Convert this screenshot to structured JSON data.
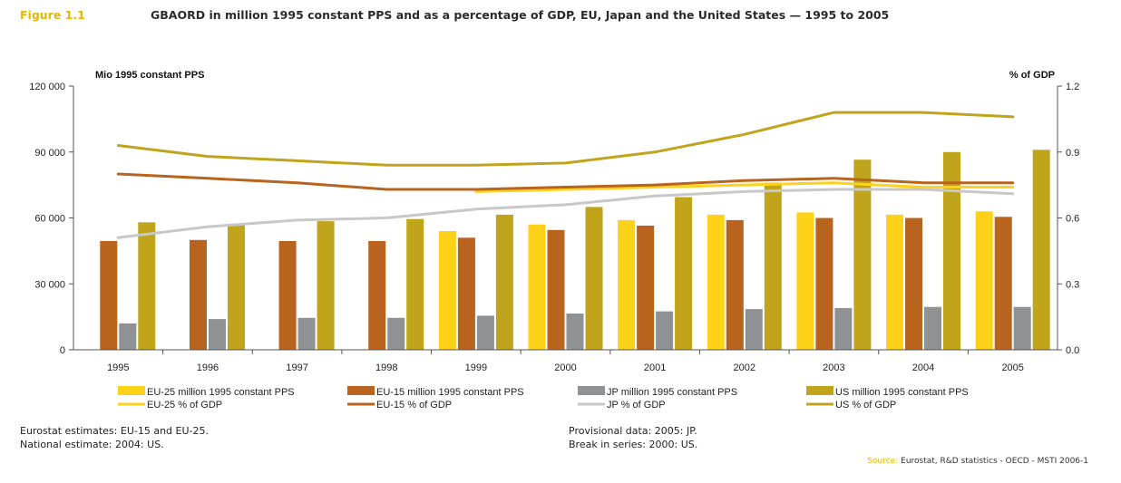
{
  "figure": {
    "label": "Figure 1.1",
    "title": "GBAORD in million 1995 constant PPS and as a percentage of GDP, EU, Japan and the United States — 1995 to 2005"
  },
  "colors": {
    "eu25": "#ffd21a",
    "eu15": "#b8641f",
    "jp_bar": "#8f9295",
    "jp_line": "#c8c8c8",
    "us": "#bfa41c",
    "axis": "#555555",
    "background": "#ffffff"
  },
  "chart_data": {
    "type": "bar",
    "categories": [
      "1995",
      "1996",
      "1997",
      "1998",
      "1999",
      "2000",
      "2001",
      "2002",
      "2003",
      "2004",
      "2005"
    ],
    "ylabel_left": "Mio 1995 constant PPS",
    "ylabel_right": "% of GDP",
    "ylim_left": [
      0,
      120000
    ],
    "ylim_right": [
      0.0,
      1.2
    ],
    "yticks_left": [
      "0",
      "30 000",
      "60 000",
      "90 000",
      "120 000"
    ],
    "yticks_right": [
      "0.0",
      "0.3",
      "0.6",
      "0.9",
      "1.2"
    ],
    "grid": false,
    "series": [
      {
        "name": "EU-25 million 1995 constant PPS",
        "kind": "bar",
        "axis": "left",
        "color": "#ffd21a",
        "values": [
          null,
          null,
          null,
          null,
          54000,
          57000,
          59000,
          61500,
          62500,
          61500,
          63000
        ]
      },
      {
        "name": "EU-15 million 1995 constant PPS",
        "kind": "bar",
        "axis": "left",
        "color": "#b8641f",
        "values": [
          49500,
          50000,
          49500,
          49500,
          51000,
          54500,
          56500,
          59000,
          60000,
          60000,
          60500
        ]
      },
      {
        "name": "JP million 1995 constant PPS",
        "kind": "bar",
        "axis": "left",
        "color": "#8f9295",
        "values": [
          12000,
          14000,
          14500,
          14500,
          15500,
          16500,
          17500,
          18500,
          19000,
          19500,
          19500
        ]
      },
      {
        "name": "US million 1995 constant PPS",
        "kind": "bar",
        "axis": "left",
        "color": "#bfa41c",
        "values": [
          58000,
          57000,
          58500,
          59500,
          61500,
          65000,
          69500,
          76000,
          86500,
          90000,
          91000
        ]
      },
      {
        "name": "EU-25 % of GDP",
        "kind": "line",
        "axis": "right",
        "color": "#ffd21a",
        "values": [
          null,
          null,
          null,
          null,
          0.72,
          0.73,
          0.74,
          0.75,
          0.76,
          0.74,
          0.74
        ]
      },
      {
        "name": "EU-15 % of GDP",
        "kind": "line",
        "axis": "right",
        "color": "#b8641f",
        "values": [
          0.8,
          0.78,
          0.76,
          0.73,
          0.73,
          0.74,
          0.75,
          0.77,
          0.78,
          0.76,
          0.76
        ]
      },
      {
        "name": "JP % of GDP",
        "kind": "line",
        "axis": "right",
        "color": "#c8c8c8",
        "values": [
          0.51,
          0.56,
          0.59,
          0.6,
          0.64,
          0.66,
          0.7,
          0.72,
          0.73,
          0.73,
          0.71
        ]
      },
      {
        "name": "US % of GDP",
        "kind": "line",
        "axis": "right",
        "color": "#bfa41c",
        "values": [
          0.93,
          0.88,
          0.86,
          0.84,
          0.84,
          0.85,
          0.9,
          0.98,
          1.08,
          1.08,
          1.06
        ]
      }
    ],
    "legend": {
      "placement": "bottom",
      "items": [
        {
          "label": "EU-25 million 1995 constant PPS",
          "kind": "bar",
          "color": "#ffd21a"
        },
        {
          "label": "EU-15 million 1995 constant PPS",
          "kind": "bar",
          "color": "#b8641f"
        },
        {
          "label": "JP million 1995 constant PPS",
          "kind": "bar",
          "color": "#8f9295"
        },
        {
          "label": "US million 1995 constant PPS",
          "kind": "bar",
          "color": "#bfa41c"
        },
        {
          "label": "EU-25 % of GDP",
          "kind": "line",
          "color": "#ffd21a"
        },
        {
          "label": "EU-15 % of GDP",
          "kind": "line",
          "color": "#b8641f"
        },
        {
          "label": "JP % of GDP",
          "kind": "line",
          "color": "#c8c8c8"
        },
        {
          "label": "US % of GDP",
          "kind": "line",
          "color": "#bfa41c"
        }
      ]
    }
  },
  "notes": {
    "left_line1": "Eurostat estimates: EU-15 and EU-25.",
    "left_line2": "National estimate: 2004: US.",
    "right_line1": "Provisional data: 2005: JP.",
    "right_line2": "Break in series: 2000: US."
  },
  "source": {
    "label": "Source:",
    "text": "Eurostat, R&D statistics - OECD - MSTI 2006-1"
  }
}
